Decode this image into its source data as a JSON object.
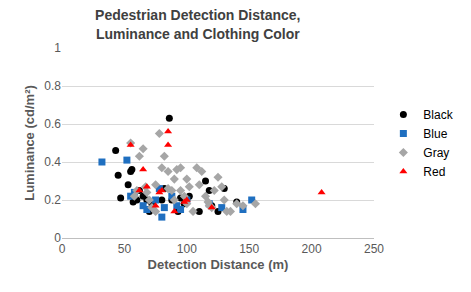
{
  "chart_data": {
    "type": "scatter",
    "title": "Pedestrian Detection Distance,\nLuminance and Clothing Color",
    "x_label": "Detection Distance (m)",
    "y_label": "Luminance (cd/m²)",
    "xlim": [
      0,
      250
    ],
    "xticks": [
      0,
      50,
      100,
      150,
      200,
      250
    ],
    "ylim": [
      0,
      1
    ],
    "yticks": [
      0,
      0.2,
      0.4,
      0.6,
      0.8,
      1
    ],
    "grid": true,
    "legend": "right",
    "series": [
      {
        "name": "Black",
        "color": "#000000",
        "marker": "circle",
        "x": [
          43,
          45,
          47,
          53,
          55,
          56,
          57,
          60,
          62,
          65,
          68,
          70,
          72,
          80,
          82,
          86,
          88,
          93,
          95,
          98,
          100,
          102,
          110,
          115,
          118,
          120,
          125,
          130,
          140
        ],
        "values": [
          0.46,
          0.33,
          0.21,
          0.28,
          0.35,
          0.36,
          0.19,
          0.2,
          0.25,
          0.22,
          0.2,
          0.14,
          0.18,
          0.2,
          0.26,
          0.63,
          0.2,
          0.14,
          0.21,
          0.18,
          0.2,
          0.22,
          0.14,
          0.3,
          0.25,
          0.17,
          0.14,
          0.26,
          0.19
        ]
      },
      {
        "name": "Blue",
        "color": "#1f6fc0",
        "marker": "square",
        "x": [
          32,
          52,
          55,
          58,
          65,
          68,
          75,
          78,
          80,
          82,
          88,
          92,
          95,
          100,
          118,
          128,
          145,
          152
        ],
        "values": [
          0.4,
          0.41,
          0.22,
          0.24,
          0.17,
          0.15,
          0.2,
          0.26,
          0.11,
          0.16,
          0.22,
          0.17,
          0.15,
          0.2,
          0.18,
          0.16,
          0.15,
          0.2
        ]
      },
      {
        "name": "Gray",
        "color": "#a6a6a6",
        "marker": "diamond",
        "x": [
          55,
          58,
          60,
          62,
          65,
          67,
          68,
          70,
          72,
          75,
          75,
          78,
          80,
          82,
          85,
          85,
          88,
          90,
          90,
          92,
          95,
          95,
          98,
          100,
          100,
          102,
          105,
          108,
          110,
          112,
          115,
          117,
          118,
          120,
          122,
          125,
          128,
          130,
          132,
          135,
          140,
          145,
          155
        ],
        "values": [
          0.5,
          0.22,
          0.25,
          0.43,
          0.47,
          0.27,
          0.24,
          0.2,
          0.16,
          0.14,
          0.28,
          0.55,
          0.37,
          0.43,
          0.26,
          0.35,
          0.25,
          0.2,
          0.31,
          0.36,
          0.37,
          0.25,
          0.22,
          0.18,
          0.31,
          0.27,
          0.14,
          0.37,
          0.28,
          0.35,
          0.22,
          0.19,
          0.17,
          0.16,
          0.25,
          0.32,
          0.27,
          0.2,
          0.14,
          0.14,
          0.18,
          0.17,
          0.18
        ]
      },
      {
        "name": "Red",
        "color": "#ff0000",
        "marker": "triangle-up",
        "x": [
          55,
          62,
          65,
          68,
          75,
          78,
          80,
          85,
          85,
          90,
          98,
          100,
          120,
          208
        ],
        "values": [
          0.49,
          0.25,
          0.36,
          0.27,
          0.17,
          0.24,
          0.25,
          0.56,
          0.49,
          0.14,
          0.19,
          0.2,
          0.16,
          0.24
        ]
      }
    ]
  }
}
